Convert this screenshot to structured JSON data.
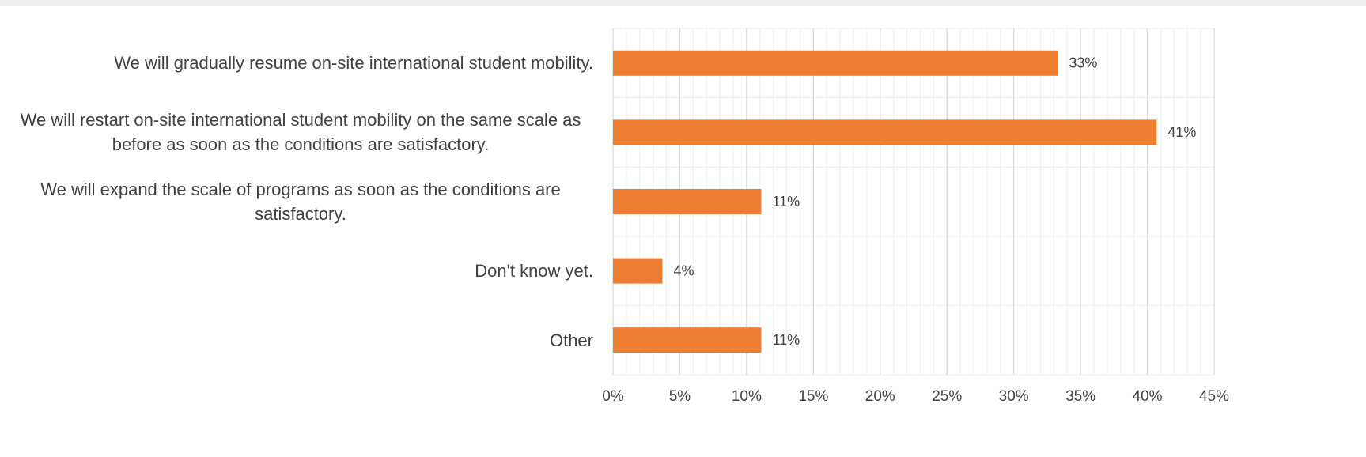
{
  "chart_data": {
    "type": "bar",
    "orientation": "horizontal",
    "categories": [
      "We will gradually resume on-site international student mobility.",
      "We will restart on-site international student mobility on the same scale as before as soon as the conditions are satisfactory.",
      "We will expand the scale of programs as soon as the conditions are satisfactory.",
      "Don't know yet.",
      "Other"
    ],
    "values": [
      33.3,
      40.7,
      11.1,
      3.7,
      11.1
    ],
    "value_labels": [
      "33%",
      "41%",
      "11%",
      "4%",
      "11%"
    ],
    "color": "#ed7d31",
    "xlim": [
      0,
      45
    ],
    "xticks": [
      {
        "value": 0,
        "label": "0%"
      },
      {
        "value": 5,
        "label": "5%"
      },
      {
        "value": 10,
        "label": "10%"
      },
      {
        "value": 15,
        "label": "15%"
      },
      {
        "value": 20,
        "label": "20%"
      },
      {
        "value": 25,
        "label": "25%"
      },
      {
        "value": 30,
        "label": "30%"
      },
      {
        "value": 35,
        "label": "35%"
      },
      {
        "value": 40,
        "label": "40%"
      },
      {
        "value": 45,
        "label": "45%"
      }
    ],
    "grid": true
  }
}
